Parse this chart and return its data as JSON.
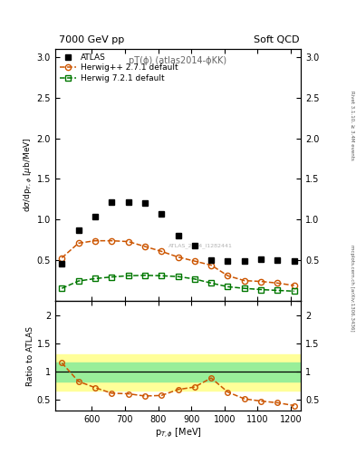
{
  "title_left": "7000 GeV pp",
  "title_right": "Soft QCD",
  "plot_title": "pT(ϕ) (atlas2014-ϕKK)",
  "right_label_top": "Rivet 3.1.10, ≥ 3.4M events",
  "watermark": "mcplots.cern.ch [arXiv:1306.3436]",
  "analysis_label": "ATLAS_2014_I1282441",
  "ylabel": "dσ/dp_{T,ϕ} [μb/MeV]",
  "ylabel_ratio": "Ratio to ATLAS",
  "xlim": [
    490,
    1230
  ],
  "ylim_main": [
    0,
    3.1
  ],
  "ylim_ratio": [
    0.3,
    2.25
  ],
  "yticks_main": [
    0,
    0.5,
    1.0,
    1.5,
    2.0,
    2.5,
    3.0
  ],
  "yticks_ratio": [
    0.5,
    1.0,
    1.5,
    2.0
  ],
  "xticks": [
    600,
    700,
    800,
    900,
    1000,
    1100,
    1200
  ],
  "atlas_x": [
    510,
    560,
    610,
    660,
    710,
    760,
    810,
    860,
    910,
    960,
    1010,
    1060,
    1110,
    1160,
    1210
  ],
  "atlas_y": [
    0.46,
    0.87,
    1.04,
    1.22,
    1.22,
    1.2,
    1.07,
    0.8,
    0.68,
    0.5,
    0.49,
    0.49,
    0.51,
    0.5,
    0.49
  ],
  "herwig_pp_x": [
    510,
    560,
    610,
    660,
    710,
    760,
    810,
    860,
    910,
    960,
    1010,
    1060,
    1110,
    1160,
    1210
  ],
  "herwig_pp_y": [
    0.53,
    0.71,
    0.74,
    0.74,
    0.73,
    0.67,
    0.61,
    0.54,
    0.49,
    0.44,
    0.31,
    0.25,
    0.24,
    0.22,
    0.19
  ],
  "herwig72_x": [
    510,
    560,
    610,
    660,
    710,
    760,
    810,
    860,
    910,
    960,
    1010,
    1060,
    1110,
    1160,
    1210
  ],
  "herwig72_y": [
    0.155,
    0.245,
    0.275,
    0.295,
    0.31,
    0.315,
    0.31,
    0.3,
    0.27,
    0.22,
    0.175,
    0.155,
    0.14,
    0.13,
    0.12
  ],
  "ratio_hpp_x": [
    510,
    560,
    610,
    660,
    710,
    760,
    810,
    860,
    910,
    960,
    1010,
    1060,
    1110,
    1160,
    1210
  ],
  "ratio_hpp_y": [
    1.15,
    0.82,
    0.71,
    0.61,
    0.6,
    0.56,
    0.57,
    0.675,
    0.72,
    0.88,
    0.63,
    0.51,
    0.47,
    0.44,
    0.39
  ],
  "band_yellow_lo": 0.65,
  "band_yellow_hi": 1.3,
  "band_green_lo": 0.82,
  "band_green_hi": 1.15,
  "atlas_color": "#000000",
  "herwig_pp_color": "#cc5500",
  "herwig72_color": "#007700",
  "band_yellow_color": "#ffff99",
  "band_green_color": "#99ee99",
  "bg_color": "#ffffff"
}
